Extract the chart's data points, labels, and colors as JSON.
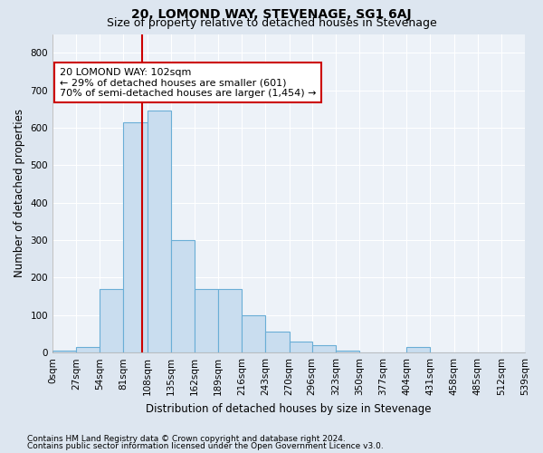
{
  "title": "20, LOMOND WAY, STEVENAGE, SG1 6AJ",
  "subtitle": "Size of property relative to detached houses in Stevenage",
  "xlabel": "Distribution of detached houses by size in Stevenage",
  "ylabel": "Number of detached properties",
  "footer_line1": "Contains HM Land Registry data © Crown copyright and database right 2024.",
  "footer_line2": "Contains public sector information licensed under the Open Government Licence v3.0.",
  "bin_edges": [
    0,
    27,
    54,
    81,
    108,
    135,
    162,
    189,
    216,
    243,
    270,
    296,
    323,
    350,
    377,
    404,
    431,
    458,
    485,
    512,
    539
  ],
  "bin_labels": [
    "0sqm",
    "27sqm",
    "54sqm",
    "81sqm",
    "108sqm",
    "135sqm",
    "162sqm",
    "189sqm",
    "216sqm",
    "243sqm",
    "270sqm",
    "296sqm",
    "323sqm",
    "350sqm",
    "377sqm",
    "404sqm",
    "431sqm",
    "458sqm",
    "485sqm",
    "512sqm",
    "539sqm"
  ],
  "counts": [
    5,
    15,
    170,
    615,
    645,
    300,
    170,
    170,
    100,
    55,
    30,
    20,
    5,
    0,
    0,
    15,
    0,
    0,
    0,
    0
  ],
  "bar_color": "#c9ddef",
  "bar_edge_color": "#6aaed6",
  "property_line_x": 102,
  "property_line_color": "#cc0000",
  "annotation_text": "20 LOMOND WAY: 102sqm\n← 29% of detached houses are smaller (601)\n70% of semi-detached houses are larger (1,454) →",
  "annotation_box_color": "#ffffff",
  "annotation_box_edge": "#cc0000",
  "ylim": [
    0,
    850
  ],
  "yticks": [
    0,
    100,
    200,
    300,
    400,
    500,
    600,
    700,
    800
  ],
  "background_color": "#dde6f0",
  "axes_background": "#edf2f8",
  "grid_color": "#ffffff",
  "title_fontsize": 10,
  "subtitle_fontsize": 9,
  "axis_label_fontsize": 8.5,
  "tick_fontsize": 7.5,
  "footer_fontsize": 6.5
}
